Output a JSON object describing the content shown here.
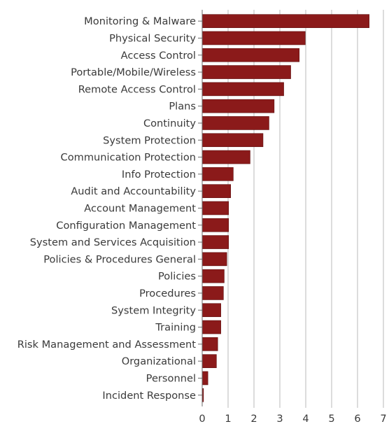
{
  "chart_data": {
    "type": "bar",
    "orientation": "horizontal",
    "categories": [
      "Monitoring & Malware",
      "Physical Security",
      "Access Control",
      "Portable/Mobile/Wireless",
      "Remote Access Control",
      "Plans",
      "Continuity",
      "System Protection",
      "Communication Protection",
      "Info Protection",
      "Audit and Accountability",
      "Account Management",
      "Configuration Management",
      "System and Services Acquisition",
      "Policies & Procedures General",
      "Policies",
      "Procedures",
      "System Integrity",
      "Training",
      "Risk Management and Assessment",
      "Organizational",
      "Personnel",
      "Incident Response"
    ],
    "values": [
      6.45,
      3.98,
      3.75,
      3.42,
      3.15,
      2.78,
      2.58,
      2.35,
      1.85,
      1.2,
      1.1,
      1.02,
      1.02,
      1.02,
      0.95,
      0.85,
      0.82,
      0.72,
      0.72,
      0.6,
      0.55,
      0.22,
      0.05
    ],
    "xlim": [
      0,
      7
    ],
    "xticks": [
      "0",
      "1",
      "2",
      "3",
      "4",
      "5",
      "6",
      "7"
    ],
    "grid": "vertical",
    "bar_color": "#8b1a1a",
    "title": "",
    "xlabel": "",
    "ylabel": ""
  }
}
